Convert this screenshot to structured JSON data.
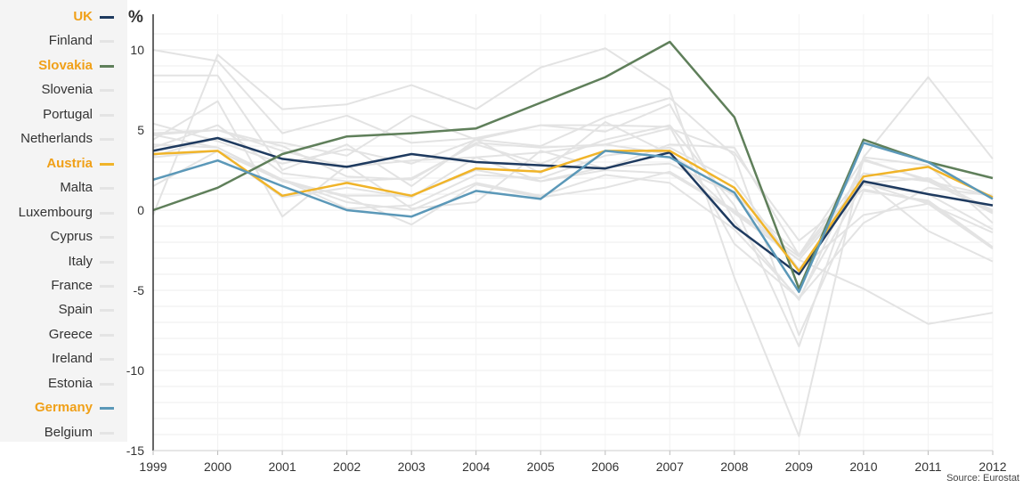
{
  "chart_data": {
    "type": "line",
    "title": "",
    "ylabel": "%",
    "xlabel": "",
    "x": [
      "1999",
      "2000",
      "2001",
      "2002",
      "2003",
      "2004",
      "2005",
      "2006",
      "2007",
      "2008",
      "2009",
      "2010",
      "2011",
      "2012"
    ],
    "ylim": [
      -15,
      12
    ],
    "yticks": [
      10,
      5,
      0,
      -5,
      -10,
      -15
    ],
    "grid": true,
    "legend_placement": "left",
    "source": "Source: Eurostat",
    "legend": [
      {
        "name": "UK",
        "highlight": true,
        "color": "#1e3a5f"
      },
      {
        "name": "Finland",
        "highlight": false
      },
      {
        "name": "Slovakia",
        "highlight": true,
        "color": "#5f7f5a"
      },
      {
        "name": "Slovenia",
        "highlight": false
      },
      {
        "name": "Portugal",
        "highlight": false
      },
      {
        "name": "Netherlands",
        "highlight": false
      },
      {
        "name": "Austria",
        "highlight": true,
        "color": "#f0b429"
      },
      {
        "name": "Malta",
        "highlight": false
      },
      {
        "name": "Luxembourg",
        "highlight": false
      },
      {
        "name": "Cyprus",
        "highlight": false
      },
      {
        "name": "Italy",
        "highlight": false
      },
      {
        "name": "France",
        "highlight": false
      },
      {
        "name": "Spain",
        "highlight": false
      },
      {
        "name": "Greece",
        "highlight": false
      },
      {
        "name": "Ireland",
        "highlight": false
      },
      {
        "name": "Estonia",
        "highlight": false
      },
      {
        "name": "Germany",
        "highlight": true,
        "color": "#5b98b8"
      },
      {
        "name": "Belgium",
        "highlight": false
      }
    ],
    "series": [
      {
        "name": "Finland",
        "values": [
          3.9,
          5.3,
          2.3,
          1.8,
          2.0,
          4.1,
          2.9,
          4.4,
          5.3,
          0.3,
          -8.5,
          3.3,
          2.8,
          -0.8
        ]
      },
      {
        "name": "Slovenia",
        "values": [
          5.4,
          4.3,
          2.9,
          3.8,
          2.9,
          4.4,
          4.0,
          5.8,
          7.0,
          3.4,
          -7.8,
          1.2,
          0.6,
          -2.3
        ]
      },
      {
        "name": "Portugal",
        "values": [
          4.1,
          3.9,
          1.9,
          0.8,
          -0.9,
          1.6,
          0.8,
          1.4,
          2.4,
          0.0,
          -2.9,
          1.9,
          -1.3,
          -3.2
        ]
      },
      {
        "name": "Netherlands",
        "values": [
          4.7,
          3.9,
          1.9,
          0.1,
          0.3,
          2.2,
          2.0,
          3.4,
          3.9,
          1.8,
          -3.7,
          1.6,
          1.0,
          -1.2
        ]
      },
      {
        "name": "Malta",
        "values": [
          4.4,
          6.8,
          -0.4,
          2.8,
          0.1,
          0.5,
          3.7,
          2.6,
          4.1,
          3.9,
          -2.8,
          3.2,
          1.8,
          0.9
        ]
      },
      {
        "name": "Luxembourg",
        "values": [
          8.4,
          8.4,
          2.5,
          4.1,
          1.5,
          4.4,
          5.3,
          4.9,
          6.6,
          -0.7,
          -5.6,
          3.1,
          1.9,
          -0.2
        ]
      },
      {
        "name": "Cyprus",
        "values": [
          4.8,
          5.0,
          4.0,
          2.1,
          1.9,
          4.2,
          3.9,
          4.1,
          5.1,
          3.6,
          -1.9,
          1.3,
          0.5,
          -2.4
        ]
      },
      {
        "name": "Italy",
        "values": [
          1.5,
          3.7,
          1.9,
          0.5,
          0.0,
          1.7,
          0.9,
          2.2,
          1.7,
          -1.2,
          -5.5,
          1.7,
          0.4,
          -2.4
        ]
      },
      {
        "name": "France",
        "values": [
          3.3,
          3.7,
          1.8,
          0.9,
          0.9,
          2.5,
          1.8,
          2.5,
          2.3,
          -0.1,
          -3.1,
          1.7,
          2.0,
          0.0
        ]
      },
      {
        "name": "Spain",
        "values": [
          4.7,
          5.0,
          3.7,
          2.7,
          3.1,
          3.3,
          3.6,
          4.1,
          3.5,
          0.9,
          -3.7,
          -0.3,
          0.4,
          -1.4
        ]
      },
      {
        "name": "Greece",
        "values": [
          3.4,
          4.5,
          4.2,
          3.4,
          5.9,
          4.4,
          2.3,
          5.5,
          3.5,
          -0.2,
          -3.1,
          -4.9,
          -7.1,
          -6.4
        ]
      },
      {
        "name": "Ireland",
        "values": [
          10.0,
          9.3,
          4.8,
          5.9,
          4.2,
          4.5,
          5.3,
          5.3,
          5.2,
          -2.1,
          -5.5,
          -0.8,
          1.4,
          0.9
        ]
      },
      {
        "name": "Estonia",
        "values": [
          -0.3,
          9.7,
          6.3,
          6.6,
          7.8,
          6.3,
          8.9,
          10.1,
          7.5,
          -4.2,
          -14.1,
          3.3,
          8.3,
          3.2
        ]
      },
      {
        "name": "Belgium",
        "values": [
          3.5,
          3.7,
          0.8,
          1.4,
          0.8,
          3.3,
          1.8,
          2.7,
          2.9,
          1.0,
          -2.8,
          2.3,
          1.8,
          -0.1
        ]
      },
      {
        "name": "UK",
        "values": [
          3.7,
          4.5,
          3.2,
          2.7,
          3.5,
          3.0,
          2.8,
          2.6,
          3.6,
          -1.0,
          -4.0,
          1.8,
          1.0,
          0.3
        ]
      },
      {
        "name": "Slovakia",
        "values": [
          0.0,
          1.4,
          3.5,
          4.6,
          4.8,
          5.1,
          6.7,
          8.3,
          10.5,
          5.8,
          -4.9,
          4.4,
          3.0,
          2.0
        ]
      },
      {
        "name": "Austria",
        "values": [
          3.5,
          3.7,
          0.9,
          1.7,
          0.9,
          2.6,
          2.4,
          3.7,
          3.7,
          1.4,
          -3.8,
          2.1,
          2.7,
          0.8
        ]
      },
      {
        "name": "Germany",
        "values": [
          1.9,
          3.1,
          1.5,
          0.0,
          -0.4,
          1.2,
          0.7,
          3.7,
          3.3,
          1.1,
          -5.1,
          4.2,
          3.0,
          0.7
        ]
      }
    ]
  }
}
